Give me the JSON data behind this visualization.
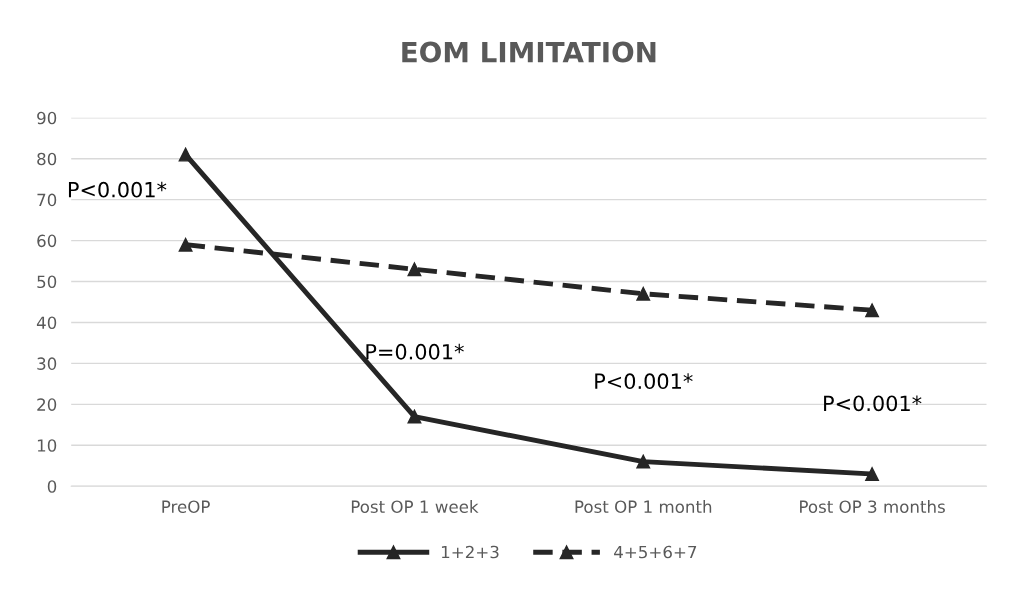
{
  "chart_data": {
    "type": "line",
    "title": "EOM LIMITATION",
    "categories": [
      "PreOP",
      "Post OP 1 week",
      "Post OP 1 month",
      "Post OP 3 months"
    ],
    "series": [
      {
        "name": "1+2+3",
        "color": "#262626",
        "values": [
          81,
          17,
          6,
          3
        ],
        "line_style": "solid"
      },
      {
        "name": "4+5+6+7",
        "color": "#262626",
        "values": [
          59,
          53,
          47,
          43
        ],
        "line_style": "dashed"
      }
    ],
    "ylim": [
      0,
      90
    ],
    "yticks": [
      0,
      10,
      20,
      30,
      40,
      50,
      60,
      70,
      80,
      90
    ],
    "grid": "y",
    "legend": "bottom",
    "marker": "triangle",
    "annotations": [
      "P<0.001*",
      "P=0.001*",
      "P<0.001*",
      "P<0.001*"
    ]
  }
}
